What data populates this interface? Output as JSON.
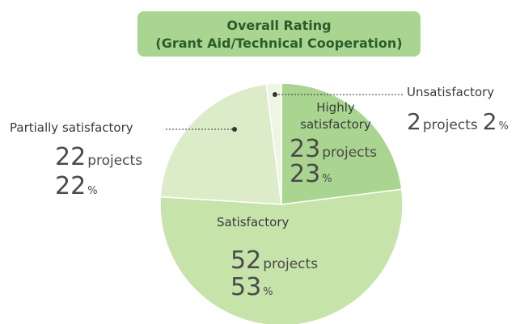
{
  "chart_data": {
    "type": "pie",
    "title": "Overall Rating",
    "subtitle": "(Grant Aid/Technical Cooperation)",
    "categories": [
      "Highly satisfactory",
      "Satisfactory",
      "Partially satisfactory",
      "Unsatisfactory"
    ],
    "values": [
      23,
      53,
      22,
      2
    ],
    "projects": [
      23,
      52,
      22,
      2
    ],
    "projects_unit": "projects",
    "percent_unit": "%",
    "colors": [
      "#a9d590",
      "#c6e3aa",
      "#dcecc9",
      "#eef5e5"
    ]
  }
}
